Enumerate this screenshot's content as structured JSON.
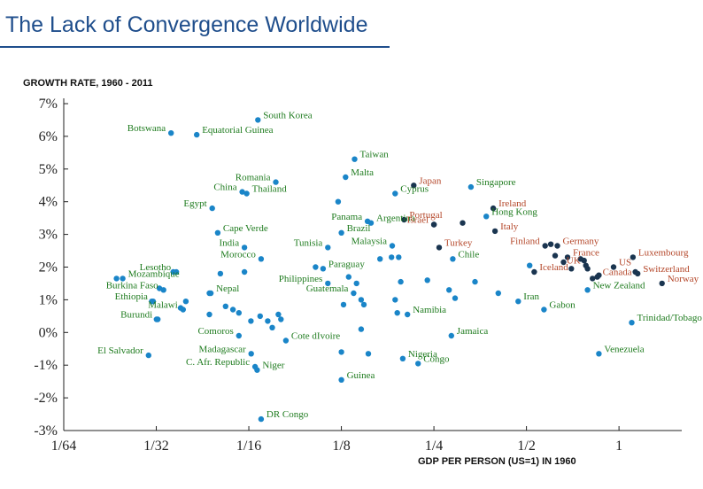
{
  "chart_data": {
    "type": "scatter",
    "title": "The Lack of Convergence Worldwide",
    "ylabel": "GROWTH RATE, 1960 - 2011",
    "xlabel": "GDP PER PERSON (US=1) IN 1960",
    "x_scale": "log2",
    "xlim": [
      0.015625,
      1.6
    ],
    "ylim": [
      -3,
      7
    ],
    "x_ticks": [
      0.015625,
      0.03125,
      0.0625,
      0.125,
      0.25,
      0.5,
      1
    ],
    "x_tick_labels": [
      "1/64",
      "1/32",
      "1/16",
      "1/8",
      "1/4",
      "1/2",
      "1"
    ],
    "y_ticks": [
      -3,
      -2,
      -1,
      0,
      1,
      2,
      3,
      4,
      5,
      6,
      7
    ],
    "y_tick_labels": [
      "-3%",
      "-2%",
      "-1%",
      "0%",
      "1%",
      "2%",
      "3%",
      "4%",
      "5%",
      "6%",
      "7%"
    ],
    "grid": false,
    "colors": {
      "developing_point": "#1a85c8",
      "developing_label": "#1e7b1e",
      "rich_point": "#1a3550",
      "rich_label": "#b4472a",
      "axis": "#222222",
      "title": "#1f4e8c"
    },
    "labeled_points": [
      {
        "name": "South Korea",
        "x": 0.0669,
        "y": 6.5,
        "group": "developing",
        "anchor": "start"
      },
      {
        "name": "Botswana",
        "x": 0.0349,
        "y": 6.1,
        "group": "developing",
        "anchor": "end"
      },
      {
        "name": "Equatorial Guinea",
        "x": 0.0423,
        "y": 6.05,
        "group": "developing",
        "anchor": "start"
      },
      {
        "name": "Taiwan",
        "x": 0.138,
        "y": 5.3,
        "group": "developing",
        "anchor": "start"
      },
      {
        "name": "Malta",
        "x": 0.129,
        "y": 4.75,
        "group": "developing",
        "anchor": "start"
      },
      {
        "name": "Romania",
        "x": 0.0765,
        "y": 4.6,
        "group": "developing",
        "anchor": "end"
      },
      {
        "name": "China",
        "x": 0.0595,
        "y": 4.3,
        "group": "developing",
        "anchor": "end"
      },
      {
        "name": "Thailand",
        "x": 0.0615,
        "y": 4.25,
        "group": "developing",
        "anchor": "start"
      },
      {
        "name": "Egypt",
        "x": 0.0475,
        "y": 3.8,
        "group": "developing",
        "anchor": "end"
      },
      {
        "name": "Japan",
        "x": 0.215,
        "y": 4.5,
        "group": "rich",
        "anchor": "start"
      },
      {
        "name": "Cyprus",
        "x": 0.187,
        "y": 4.25,
        "group": "developing",
        "anchor": "start"
      },
      {
        "name": "Singapore",
        "x": 0.33,
        "y": 4.45,
        "group": "developing",
        "anchor": "start"
      },
      {
        "name": "Portugal",
        "x": 0.2,
        "y": 3.45,
        "group": "rich",
        "anchor": "start"
      },
      {
        "name": "Ireland",
        "x": 0.39,
        "y": 3.8,
        "group": "rich",
        "anchor": "start"
      },
      {
        "name": "Hong Kong",
        "x": 0.37,
        "y": 3.55,
        "group": "developing",
        "anchor": "start"
      },
      {
        "name": "Panama",
        "x": 0.152,
        "y": 3.4,
        "group": "developing",
        "anchor": "end"
      },
      {
        "name": "Argentina",
        "x": 0.156,
        "y": 3.35,
        "group": "developing",
        "anchor": "start"
      },
      {
        "name": "Israel",
        "x": 0.25,
        "y": 3.3,
        "group": "rich",
        "anchor": "end"
      },
      {
        "name": "Italy",
        "x": 0.395,
        "y": 3.1,
        "group": "rich",
        "anchor": "start"
      },
      {
        "name": "Cape Verde",
        "x": 0.0495,
        "y": 3.05,
        "group": "developing",
        "anchor": "start"
      },
      {
        "name": "Tunisia",
        "x": 0.113,
        "y": 2.6,
        "group": "developing",
        "anchor": "end"
      },
      {
        "name": "Brazil",
        "x": 0.125,
        "y": 3.05,
        "group": "developing",
        "anchor": "start"
      },
      {
        "name": "Turkey",
        "x": 0.26,
        "y": 2.6,
        "group": "rich",
        "anchor": "start"
      },
      {
        "name": "India",
        "x": 0.0605,
        "y": 2.6,
        "group": "developing",
        "anchor": "end"
      },
      {
        "name": "Malaysia",
        "x": 0.183,
        "y": 2.65,
        "group": "developing",
        "anchor": "end"
      },
      {
        "name": "Morocco",
        "x": 0.0685,
        "y": 2.25,
        "group": "developing",
        "anchor": "end"
      },
      {
        "name": "Chile",
        "x": 0.288,
        "y": 2.25,
        "group": "developing",
        "anchor": "start"
      },
      {
        "name": "Finland",
        "x": 0.575,
        "y": 2.65,
        "group": "rich",
        "anchor": "end"
      },
      {
        "name": "Germany",
        "x": 0.63,
        "y": 2.65,
        "group": "rich",
        "anchor": "start"
      },
      {
        "name": "France",
        "x": 0.68,
        "y": 2.3,
        "group": "rich",
        "anchor": "start"
      },
      {
        "name": "Luxembourg",
        "x": 1.11,
        "y": 2.3,
        "group": "rich",
        "anchor": "start"
      },
      {
        "name": "US",
        "x": 0.96,
        "y": 2.0,
        "group": "rich",
        "anchor": "start"
      },
      {
        "name": "UK",
        "x": 0.78,
        "y": 2.05,
        "group": "rich",
        "anchor": "end"
      },
      {
        "name": "Lesotho",
        "x": 0.0363,
        "y": 1.85,
        "group": "developing",
        "anchor": "end"
      },
      {
        "name": "Paraguay",
        "x": 0.109,
        "y": 1.95,
        "group": "developing",
        "anchor": "start"
      },
      {
        "name": "Switzerland",
        "x": 1.15,
        "y": 1.8,
        "group": "rich",
        "anchor": "start"
      },
      {
        "name": "Mozambique",
        "x": 0.0243,
        "y": 1.65,
        "group": "developing",
        "anchor": "start"
      },
      {
        "name": "Iceland",
        "x": 0.53,
        "y": 1.85,
        "group": "rich",
        "anchor": "start"
      },
      {
        "name": "Canada",
        "x": 0.85,
        "y": 1.7,
        "group": "rich",
        "anchor": "start"
      },
      {
        "name": "Norway",
        "x": 1.38,
        "y": 1.5,
        "group": "rich",
        "anchor": "start"
      },
      {
        "name": "Philippines",
        "x": 0.113,
        "y": 1.5,
        "group": "developing",
        "anchor": "end"
      },
      {
        "name": "Burkina Faso",
        "x": 0.033,
        "y": 1.3,
        "group": "developing",
        "anchor": "end"
      },
      {
        "name": "Nepal",
        "x": 0.047,
        "y": 1.2,
        "group": "developing",
        "anchor": "start"
      },
      {
        "name": "Guatemala",
        "x": 0.137,
        "y": 1.2,
        "group": "developing",
        "anchor": "end"
      },
      {
        "name": "New Zealand",
        "x": 0.79,
        "y": 1.3,
        "group": "developing",
        "anchor": "start"
      },
      {
        "name": "Ethiopia",
        "x": 0.0305,
        "y": 0.95,
        "group": "developing",
        "anchor": "end"
      },
      {
        "name": "Iran",
        "x": 0.47,
        "y": 0.95,
        "group": "developing",
        "anchor": "start"
      },
      {
        "name": "Malawi",
        "x": 0.0382,
        "y": 0.7,
        "group": "developing",
        "anchor": "end"
      },
      {
        "name": "Gabon",
        "x": 0.57,
        "y": 0.7,
        "group": "developing",
        "anchor": "start"
      },
      {
        "name": "Burundi",
        "x": 0.0316,
        "y": 0.4,
        "group": "developing",
        "anchor": "end"
      },
      {
        "name": "Namibia",
        "x": 0.205,
        "y": 0.55,
        "group": "developing",
        "anchor": "start"
      },
      {
        "name": "Trinidad/Tobago",
        "x": 1.1,
        "y": 0.3,
        "group": "developing",
        "anchor": "start"
      },
      {
        "name": "Comoros",
        "x": 0.058,
        "y": -0.1,
        "group": "developing",
        "anchor": "end"
      },
      {
        "name": "Cote dIvoire",
        "x": 0.0825,
        "y": -0.25,
        "group": "developing",
        "anchor": "start"
      },
      {
        "name": "Jamaica",
        "x": 0.285,
        "y": -0.1,
        "group": "developing",
        "anchor": "start"
      },
      {
        "name": "El Salvador",
        "x": 0.0295,
        "y": -0.7,
        "group": "developing",
        "anchor": "end"
      },
      {
        "name": "Madagascar",
        "x": 0.0636,
        "y": -0.65,
        "group": "developing",
        "anchor": "end"
      },
      {
        "name": "Nigeria",
        "x": 0.198,
        "y": -0.8,
        "group": "developing",
        "anchor": "start"
      },
      {
        "name": "Venezuela",
        "x": 0.86,
        "y": -0.65,
        "group": "developing",
        "anchor": "start"
      },
      {
        "name": "C. Afr. Republic",
        "x": 0.0655,
        "y": -1.05,
        "group": "developing",
        "anchor": "end"
      },
      {
        "name": "Niger",
        "x": 0.0665,
        "y": -1.15,
        "group": "developing",
        "anchor": "start"
      },
      {
        "name": "Congo",
        "x": 0.222,
        "y": -0.95,
        "group": "developing",
        "anchor": "start"
      },
      {
        "name": "Guinea",
        "x": 0.125,
        "y": -1.45,
        "group": "developing",
        "anchor": "start"
      },
      {
        "name": "DR Congo",
        "x": 0.0685,
        "y": -2.65,
        "group": "developing",
        "anchor": "start"
      }
    ],
    "unlabeled_points": [
      {
        "x": 0.0232,
        "y": 1.65,
        "group": "developing"
      },
      {
        "x": 0.0355,
        "y": 1.85,
        "group": "developing"
      },
      {
        "x": 0.032,
        "y": 1.35,
        "group": "developing"
      },
      {
        "x": 0.0302,
        "y": 0.95,
        "group": "developing"
      },
      {
        "x": 0.0313,
        "y": 0.4,
        "group": "developing"
      },
      {
        "x": 0.0375,
        "y": 0.75,
        "group": "developing"
      },
      {
        "x": 0.039,
        "y": 0.95,
        "group": "developing"
      },
      {
        "x": 0.0465,
        "y": 1.2,
        "group": "developing"
      },
      {
        "x": 0.0505,
        "y": 1.8,
        "group": "developing"
      },
      {
        "x": 0.0605,
        "y": 1.85,
        "group": "developing"
      },
      {
        "x": 0.0525,
        "y": 0.8,
        "group": "developing"
      },
      {
        "x": 0.0555,
        "y": 0.7,
        "group": "developing"
      },
      {
        "x": 0.058,
        "y": 0.6,
        "group": "developing"
      },
      {
        "x": 0.0465,
        "y": 0.55,
        "group": "developing"
      },
      {
        "x": 0.0635,
        "y": 0.35,
        "group": "developing"
      },
      {
        "x": 0.068,
        "y": 0.5,
        "group": "developing"
      },
      {
        "x": 0.072,
        "y": 0.35,
        "group": "developing"
      },
      {
        "x": 0.0745,
        "y": 0.15,
        "group": "developing"
      },
      {
        "x": 0.078,
        "y": 0.55,
        "group": "developing"
      },
      {
        "x": 0.0795,
        "y": 0.4,
        "group": "developing"
      },
      {
        "x": 0.103,
        "y": 2.0,
        "group": "developing"
      },
      {
        "x": 0.122,
        "y": 4.0,
        "group": "developing"
      },
      {
        "x": 0.132,
        "y": 1.7,
        "group": "developing"
      },
      {
        "x": 0.14,
        "y": 1.5,
        "group": "developing"
      },
      {
        "x": 0.145,
        "y": 1.0,
        "group": "developing"
      },
      {
        "x": 0.148,
        "y": 0.85,
        "group": "developing"
      },
      {
        "x": 0.127,
        "y": 0.85,
        "group": "developing"
      },
      {
        "x": 0.167,
        "y": 2.25,
        "group": "developing"
      },
      {
        "x": 0.182,
        "y": 2.3,
        "group": "developing"
      },
      {
        "x": 0.192,
        "y": 2.3,
        "group": "developing"
      },
      {
        "x": 0.195,
        "y": 1.55,
        "group": "developing"
      },
      {
        "x": 0.187,
        "y": 1.0,
        "group": "developing"
      },
      {
        "x": 0.19,
        "y": 0.6,
        "group": "developing"
      },
      {
        "x": 0.145,
        "y": 0.1,
        "group": "developing"
      },
      {
        "x": 0.125,
        "y": -0.6,
        "group": "developing"
      },
      {
        "x": 0.153,
        "y": -0.65,
        "group": "developing"
      },
      {
        "x": 0.238,
        "y": 1.6,
        "group": "developing"
      },
      {
        "x": 0.28,
        "y": 1.3,
        "group": "developing"
      },
      {
        "x": 0.293,
        "y": 1.05,
        "group": "developing"
      },
      {
        "x": 0.34,
        "y": 1.55,
        "group": "developing"
      },
      {
        "x": 0.405,
        "y": 1.2,
        "group": "developing"
      },
      {
        "x": 0.512,
        "y": 2.05,
        "group": "developing"
      },
      {
        "x": 0.25,
        "y": 3.3,
        "group": "rich"
      },
      {
        "x": 0.31,
        "y": 3.35,
        "group": "rich"
      },
      {
        "x": 0.6,
        "y": 2.7,
        "group": "rich"
      },
      {
        "x": 0.62,
        "y": 2.35,
        "group": "rich"
      },
      {
        "x": 0.66,
        "y": 2.15,
        "group": "rich"
      },
      {
        "x": 0.7,
        "y": 1.95,
        "group": "rich"
      },
      {
        "x": 0.75,
        "y": 2.25,
        "group": "rich"
      },
      {
        "x": 0.77,
        "y": 2.2,
        "group": "rich"
      },
      {
        "x": 0.79,
        "y": 1.95,
        "group": "rich"
      },
      {
        "x": 0.82,
        "y": 1.65,
        "group": "rich"
      },
      {
        "x": 0.86,
        "y": 1.75,
        "group": "rich"
      },
      {
        "x": 1.13,
        "y": 1.85,
        "group": "rich"
      }
    ]
  }
}
